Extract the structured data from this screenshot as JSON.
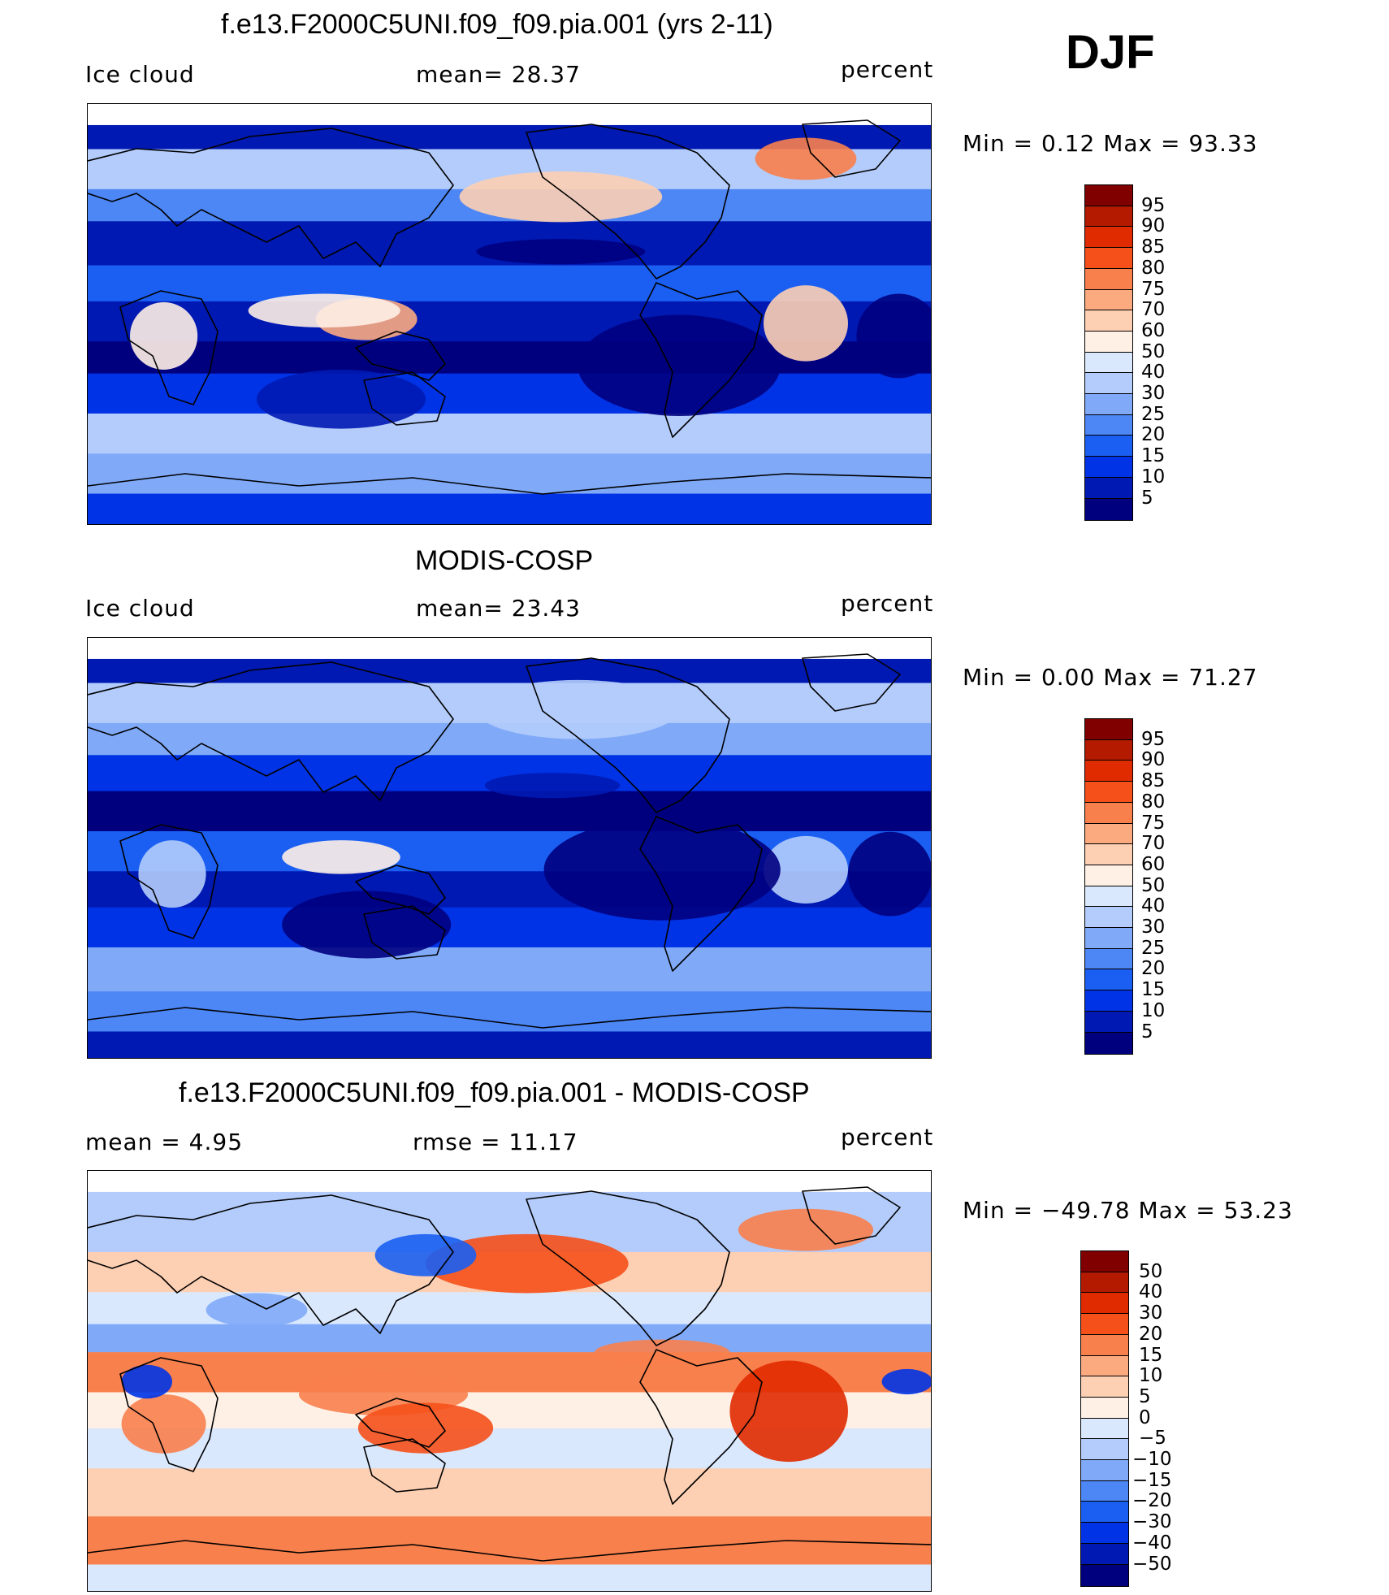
{
  "season": "DJF",
  "panels": [
    {
      "title": "f.e13.F2000C5UNI.f09_f09.pia.001 (yrs 2-11)",
      "left_label": "Ice cloud",
      "center_label": "mean=   28.37",
      "right_label": "percent",
      "minmax": "Min  =    0.12  Max  =    93.33",
      "colorbar": {
        "colors": [
          "#00007f",
          "#0019b2",
          "#0033e5",
          "#1a5ff2",
          "#4d86f5",
          "#80aaf8",
          "#b3ccfb",
          "#d9e8fd",
          "#fff0e5",
          "#fdcfb3",
          "#fbaa80",
          "#f8804d",
          "#f5501a",
          "#e02a00",
          "#b31a00",
          "#800000"
        ],
        "labels": [
          "95",
          "90",
          "85",
          "80",
          "75",
          "70",
          "60",
          "50",
          "40",
          "30",
          "25",
          "20",
          "15",
          "10",
          "5"
        ]
      }
    },
    {
      "title": "MODIS-COSP",
      "left_label": "Ice cloud",
      "center_label": "mean=   23.43",
      "right_label": "percent",
      "minmax": "Min  =    0.00  Max  =    71.27",
      "colorbar": {
        "colors": [
          "#00007f",
          "#0019b2",
          "#0033e5",
          "#1a5ff2",
          "#4d86f5",
          "#80aaf8",
          "#b3ccfb",
          "#d9e8fd",
          "#fff0e5",
          "#fdcfb3",
          "#fbaa80",
          "#f8804d",
          "#f5501a",
          "#e02a00",
          "#b31a00",
          "#800000"
        ],
        "labels": [
          "95",
          "90",
          "85",
          "80",
          "75",
          "70",
          "60",
          "50",
          "40",
          "30",
          "25",
          "20",
          "15",
          "10",
          "5"
        ]
      }
    },
    {
      "title": "f.e13.F2000C5UNI.f09_f09.pia.001 - MODIS-COSP",
      "left_label": "mean  =     4.95",
      "center_label": "rmse  =    11.17",
      "right_label": "percent",
      "minmax": "Min  = −49.78  Max  =    53.23",
      "colorbar": {
        "colors": [
          "#00007f",
          "#0019b2",
          "#0033e5",
          "#1a5ff2",
          "#4d86f5",
          "#80aaf8",
          "#b3ccfb",
          "#d9e8fd",
          "#fff0e5",
          "#fdcfb3",
          "#fbaa80",
          "#f8804d",
          "#f5501a",
          "#e02a00",
          "#b31a00",
          "#800000"
        ],
        "labels": [
          "50",
          "40",
          "30",
          "20",
          "15",
          "10",
          "5",
          "0",
          "−5",
          "−10",
          "−15",
          "−20",
          "−30",
          "−40",
          "−50"
        ]
      }
    }
  ],
  "chart_data": [
    {
      "type": "heatmap",
      "title": "f.e13.F2000C5UNI.f09_f09.pia.001 (yrs 2-11)",
      "variable": "Ice cloud",
      "units": "percent",
      "mean": 28.37,
      "min": 0.12,
      "max": 93.33,
      "levels": [
        5,
        10,
        15,
        20,
        25,
        30,
        40,
        50,
        60,
        70,
        75,
        80,
        85,
        90,
        95
      ]
    },
    {
      "type": "heatmap",
      "title": "MODIS-COSP",
      "variable": "Ice cloud",
      "units": "percent",
      "mean": 23.43,
      "min": 0.0,
      "max": 71.27,
      "levels": [
        5,
        10,
        15,
        20,
        25,
        30,
        40,
        50,
        60,
        70,
        75,
        80,
        85,
        90,
        95
      ]
    },
    {
      "type": "heatmap",
      "title": "f.e13.F2000C5UNI.f09_f09.pia.001 - MODIS-COSP",
      "units": "percent",
      "mean": 4.95,
      "rmse": 11.17,
      "min": -49.78,
      "max": 53.23,
      "levels": [
        -50,
        -40,
        -30,
        -20,
        -15,
        -10,
        -5,
        0,
        5,
        10,
        15,
        20,
        30,
        40,
        50
      ]
    }
  ]
}
